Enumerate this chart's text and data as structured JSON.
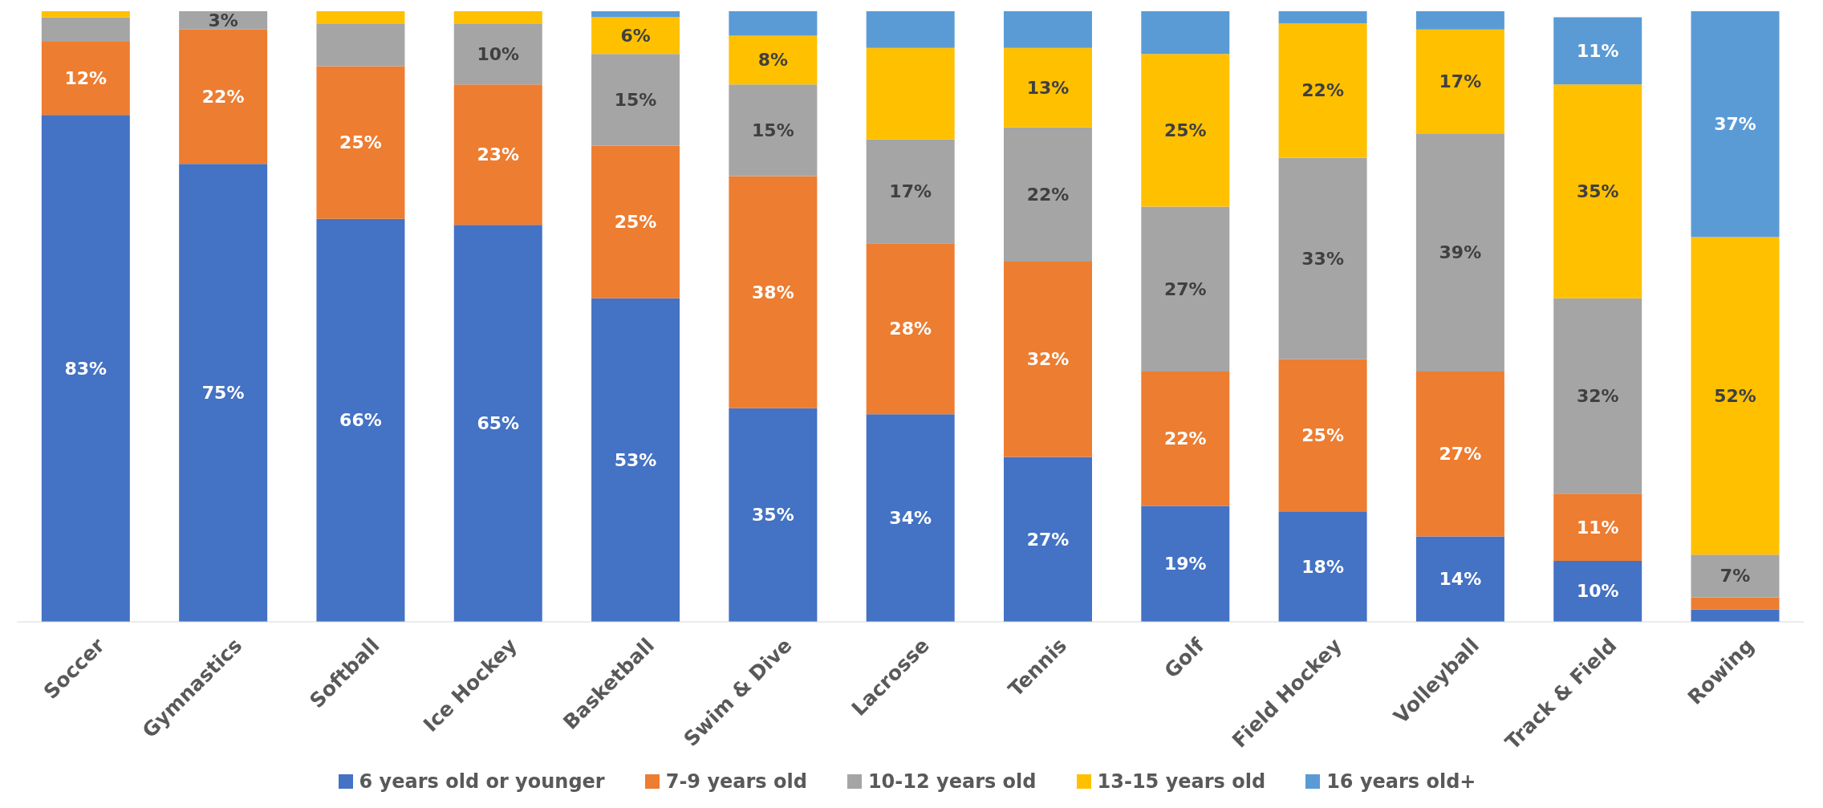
{
  "chart_data": {
    "type": "bar",
    "stacked": true,
    "categories": [
      "Soccer",
      "Gymnastics",
      "Softball",
      "Ice Hockey",
      "Basketball",
      "Swim & Dive",
      "Lacrosse",
      "Tennis",
      "Golf",
      "Field Hockey",
      "Volleyball",
      "Track & Field",
      "Rowing"
    ],
    "series": [
      {
        "name": "6 years old or younger",
        "color": "#4472c4",
        "values": [
          83,
          75,
          66,
          65,
          53,
          35,
          34,
          27,
          19,
          18,
          14,
          10,
          2
        ],
        "value_labels": [
          "83%",
          "75%",
          "66%",
          "65%",
          "53%",
          "35%",
          "34%",
          "27%",
          "19%",
          "18%",
          "14%",
          "10%",
          null
        ]
      },
      {
        "name": "7-9 years old",
        "color": "#ed7d31",
        "values": [
          12,
          22,
          25,
          23,
          25,
          38,
          28,
          32,
          22,
          25,
          27,
          11,
          2
        ],
        "value_labels": [
          "12%",
          "22%",
          "25%",
          "23%",
          "25%",
          "38%",
          "28%",
          "32%",
          "22%",
          "25%",
          "27%",
          "11%",
          null
        ]
      },
      {
        "name": "10-12 years old",
        "color": "#a5a5a5",
        "values": [
          4,
          3,
          7,
          10,
          15,
          15,
          17,
          22,
          27,
          33,
          39,
          32,
          7
        ],
        "value_labels": [
          null,
          "3%",
          null,
          "10%",
          "15%",
          "15%",
          "17%",
          "22%",
          "27%",
          "33%",
          "39%",
          "32%",
          "7%"
        ]
      },
      {
        "name": "13-15 years old",
        "color": "#ffc000",
        "values": [
          1,
          0,
          2,
          2,
          6,
          8,
          15,
          13,
          25,
          22,
          17,
          35,
          52
        ],
        "value_labels": [
          null,
          null,
          null,
          null,
          "6%",
          "8%",
          null,
          "13%",
          "25%",
          "22%",
          "17%",
          "35%",
          "52%"
        ]
      },
      {
        "name": "16 years old+",
        "color": "#5b9bd5",
        "values": [
          0,
          0,
          0,
          0,
          1,
          4,
          6,
          6,
          7,
          2,
          3,
          11,
          37
        ],
        "value_labels": [
          null,
          null,
          null,
          null,
          null,
          null,
          null,
          null,
          null,
          null,
          null,
          "11%",
          "37%"
        ]
      }
    ],
    "ylim": [
      0,
      100
    ],
    "tick_labels": "x",
    "legend": "bottom"
  }
}
